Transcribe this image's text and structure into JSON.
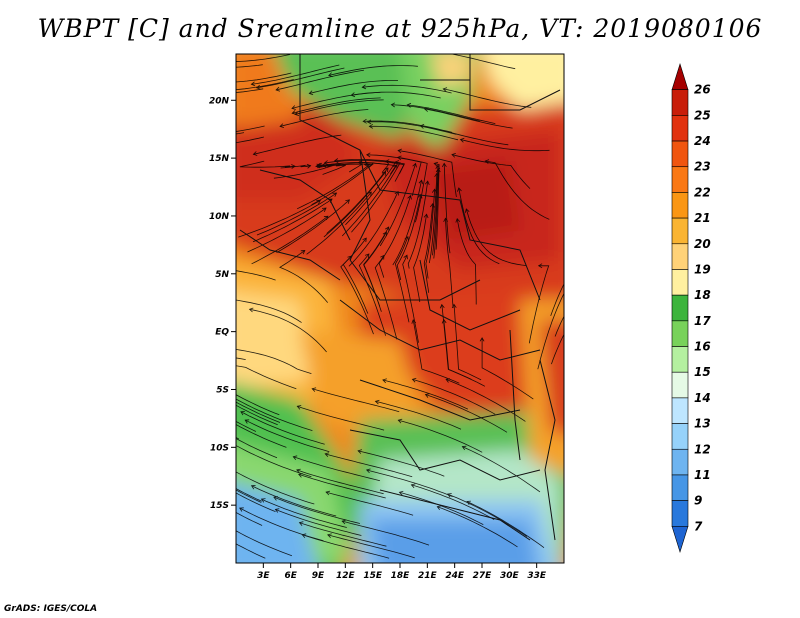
{
  "title": "WBPT [C] and Sreamline at 925hPa, VT: 2019080106",
  "credit": "GrADS: IGES/COLA",
  "map": {
    "lon_range": [
      0,
      36
    ],
    "lat_range": [
      -20,
      24
    ],
    "lon_ticks": [
      "3E",
      "6E",
      "9E",
      "12E",
      "15E",
      "18E",
      "21E",
      "24E",
      "27E",
      "30E",
      "33E"
    ],
    "lat_ticks": [
      "20N",
      "15N",
      "10N",
      "5N",
      "EQ",
      "5S",
      "10S",
      "15S"
    ]
  },
  "colorbar": {
    "labels": [
      "26",
      "25",
      "24",
      "23",
      "22",
      "21",
      "20",
      "19",
      "18",
      "17",
      "16",
      "15",
      "14",
      "13",
      "12",
      "11",
      "9",
      "7"
    ],
    "colors": [
      "#a50000",
      "#c81e0a",
      "#e1320f",
      "#f0550f",
      "#fa7814",
      "#fa9614",
      "#fab432",
      "#ffd278",
      "#fff0a0",
      "#3cb43c",
      "#78d25a",
      "#b4f0a0",
      "#e6fae6",
      "#bee6ff",
      "#96d2fa",
      "#6eb4f0",
      "#4696e6",
      "#2878dc",
      "#1e64d2"
    ]
  },
  "colors": {
    "red_hot": "#d7301e",
    "orange": "#f07814",
    "yellow": "#ffe08a",
    "green": "#50c050",
    "light_blue": "#9cd0f5",
    "blue": "#5a9ee8"
  }
}
